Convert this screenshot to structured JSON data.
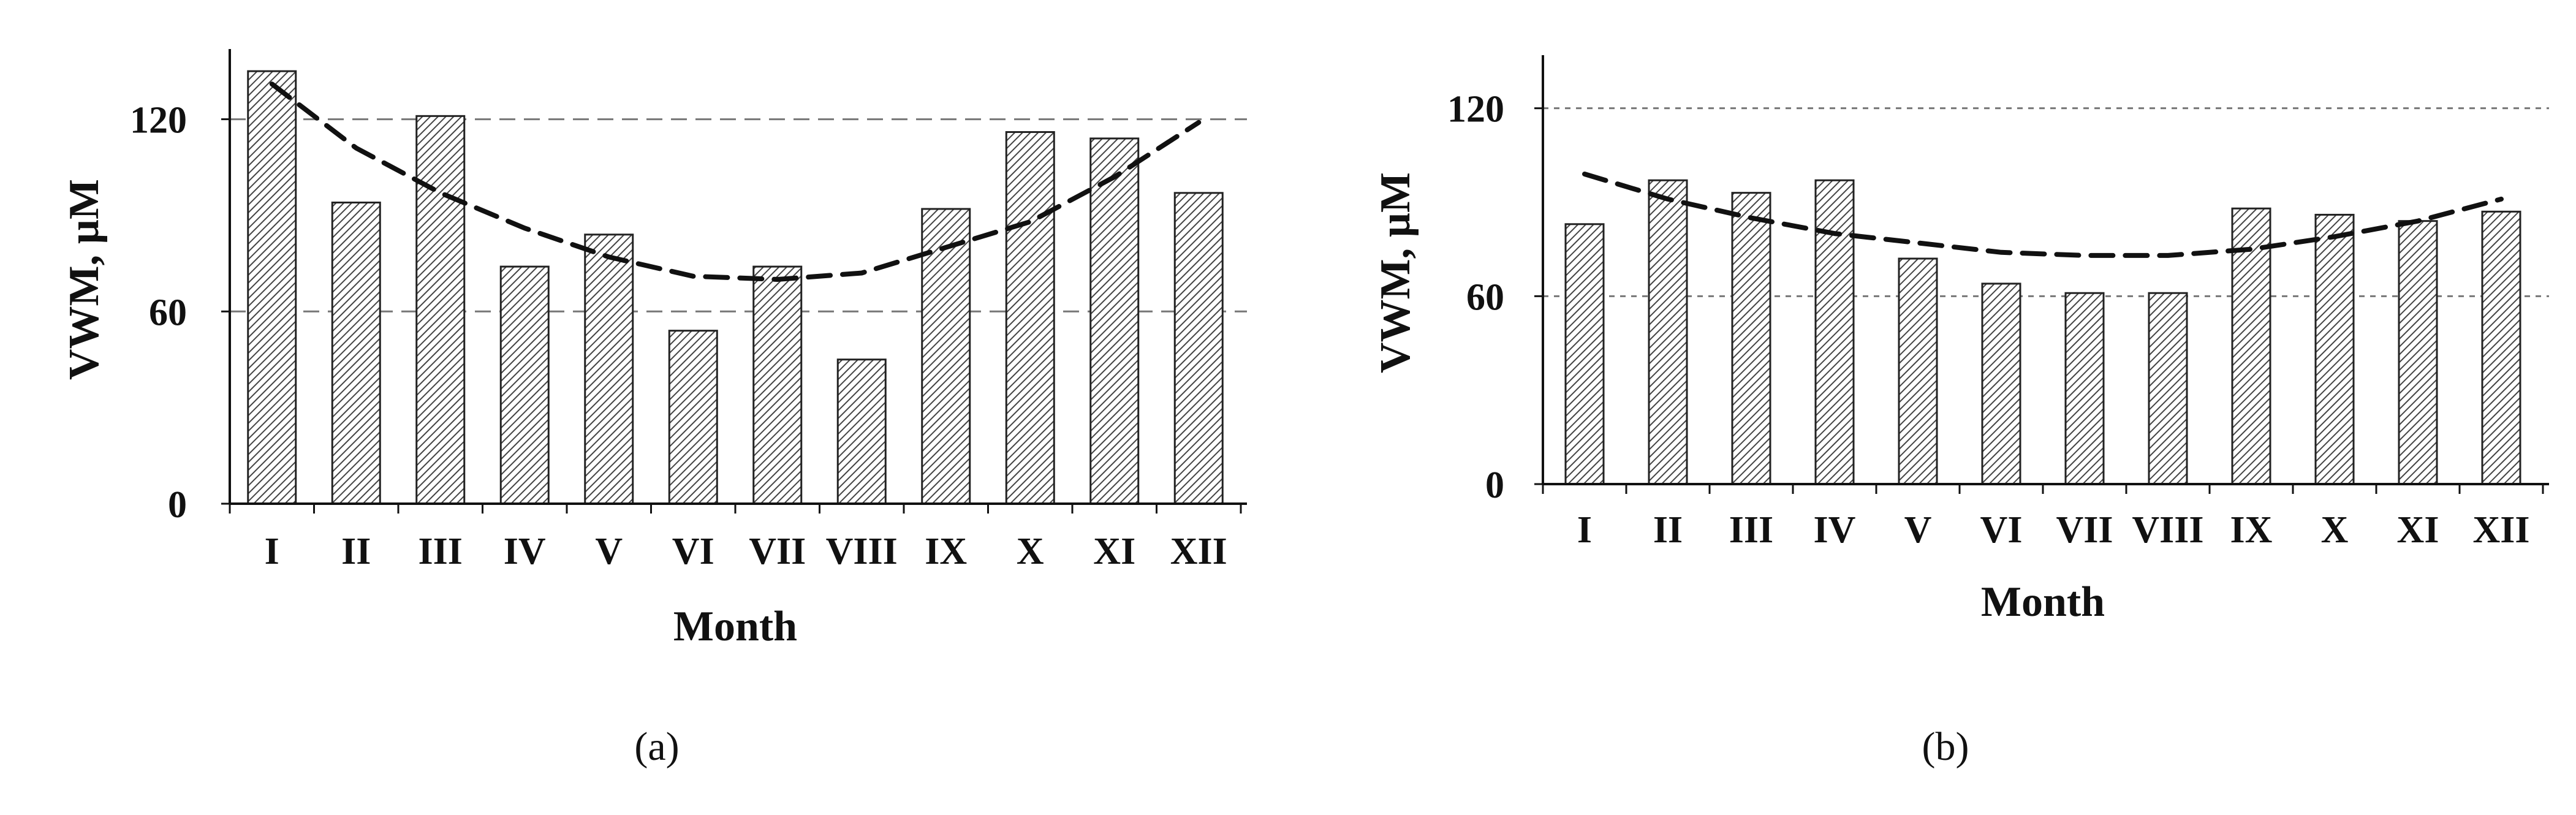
{
  "chart_data": [
    {
      "panel_label": "(a)",
      "type": "bar",
      "categories": [
        "I",
        "II",
        "III",
        "IV",
        "V",
        "VI",
        "VII",
        "VIII",
        "IX",
        "X",
        "XI",
        "XII"
      ],
      "values": [
        135,
        94,
        121,
        74,
        84,
        54,
        74,
        45,
        92,
        116,
        114,
        97
      ],
      "trend_values": [
        131,
        111,
        97,
        86,
        77,
        71,
        70,
        72,
        80,
        88,
        102,
        119
      ],
      "xlabel": "Month",
      "ylabel": "VWM, µM",
      "ylim": [
        0,
        140
      ],
      "yticks": [
        "0",
        "60",
        "120"
      ],
      "reference_lines": [
        60,
        120
      ],
      "bar_fill": "hatched",
      "trend_style": "dashed"
    },
    {
      "panel_label": "(b)",
      "type": "bar",
      "categories": [
        "I",
        "II",
        "III",
        "IV",
        "V",
        "VI",
        "VII",
        "VIII",
        "IX",
        "X",
        "XI",
        "XII"
      ],
      "values": [
        83,
        97,
        93,
        97,
        72,
        64,
        61,
        61,
        88,
        86,
        84,
        87
      ],
      "trend_values": [
        99,
        91,
        85,
        80,
        77,
        74,
        73,
        73,
        75,
        79,
        84,
        91
      ],
      "xlabel": "Month",
      "ylabel": "VWM, µM",
      "ylim": [
        0,
        135
      ],
      "yticks": [
        "0",
        "60",
        "120"
      ],
      "reference_lines": [
        60,
        120
      ],
      "bar_fill": "hatched",
      "trend_style": "dashed"
    }
  ]
}
